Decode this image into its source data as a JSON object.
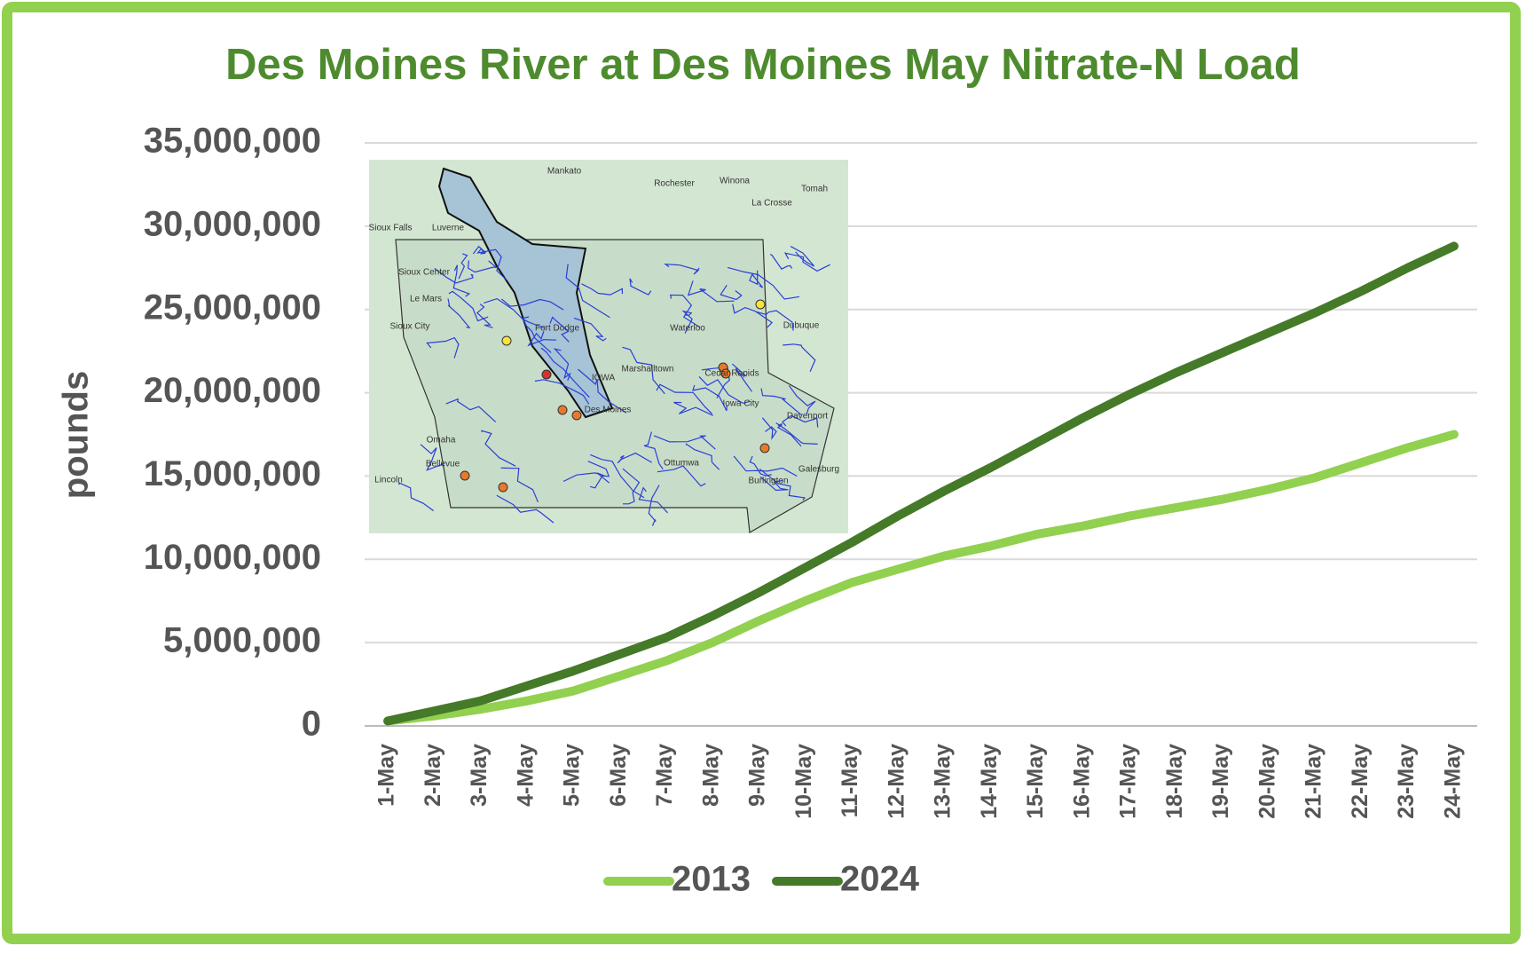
{
  "chart_data": {
    "type": "line",
    "title": "Des Moines River at Des Moines May Nitrate-N Load",
    "ylabel": "pounds",
    "categories": [
      "1-May",
      "2-May",
      "3-May",
      "4-May",
      "5-May",
      "6-May",
      "7-May",
      "8-May",
      "9-May",
      "10-May",
      "11-May",
      "12-May",
      "13-May",
      "14-May",
      "15-May",
      "16-May",
      "17-May",
      "18-May",
      "19-May",
      "20-May",
      "21-May",
      "22-May",
      "23-May",
      "24-May"
    ],
    "series": [
      {
        "name": "2013",
        "color": "#92d050",
        "values": [
          300000,
          600000,
          1000000,
          1500000,
          2100000,
          3000000,
          3900000,
          5000000,
          6300000,
          7500000,
          8600000,
          9400000,
          10200000,
          10800000,
          11500000,
          12000000,
          12600000,
          13100000,
          13600000,
          14200000,
          14900000,
          15800000,
          16700000,
          17500000
        ]
      },
      {
        "name": "2024",
        "color": "#447a28",
        "values": [
          300000,
          900000,
          1500000,
          2400000,
          3300000,
          4300000,
          5300000,
          6600000,
          8000000,
          9500000,
          11000000,
          12600000,
          14100000,
          15500000,
          17000000,
          18500000,
          19900000,
          21200000,
          22400000,
          23600000,
          24800000,
          26100000,
          27500000,
          28800000
        ]
      }
    ],
    "ylim": [
      0,
      35000000
    ],
    "yticks": [
      0,
      {
        "value": 5000000,
        "label": "5,000,000"
      },
      {
        "value": 10000000,
        "label": "10,000,000"
      },
      {
        "value": 15000000,
        "label": "15,000,000"
      },
      {
        "value": 20000000,
        "label": "20,000,000"
      },
      {
        "value": 25000000,
        "label": "25,000,000"
      },
      {
        "value": 30000000,
        "label": "30,000,000"
      },
      {
        "value": 35000000,
        "label": "35,000,000"
      }
    ],
    "grid": true,
    "legend": "bottom"
  },
  "map": {
    "labels": [
      "Mankato",
      "Rochester",
      "Winona",
      "Tomah",
      "La Crosse",
      "Sioux Falls",
      "Luverne",
      "Sioux Center",
      "Le Mars",
      "Sioux City",
      "Fort Dodge",
      "Waterloo",
      "Dubuque",
      "IOWA",
      "Marshalltown",
      "Cedar Rapids",
      "Iowa City",
      "Des Moines",
      "Davenport",
      "Omaha",
      "Bellevue",
      "Lincoln",
      "Ottumwa",
      "Galesburg",
      "Burlington"
    ]
  }
}
